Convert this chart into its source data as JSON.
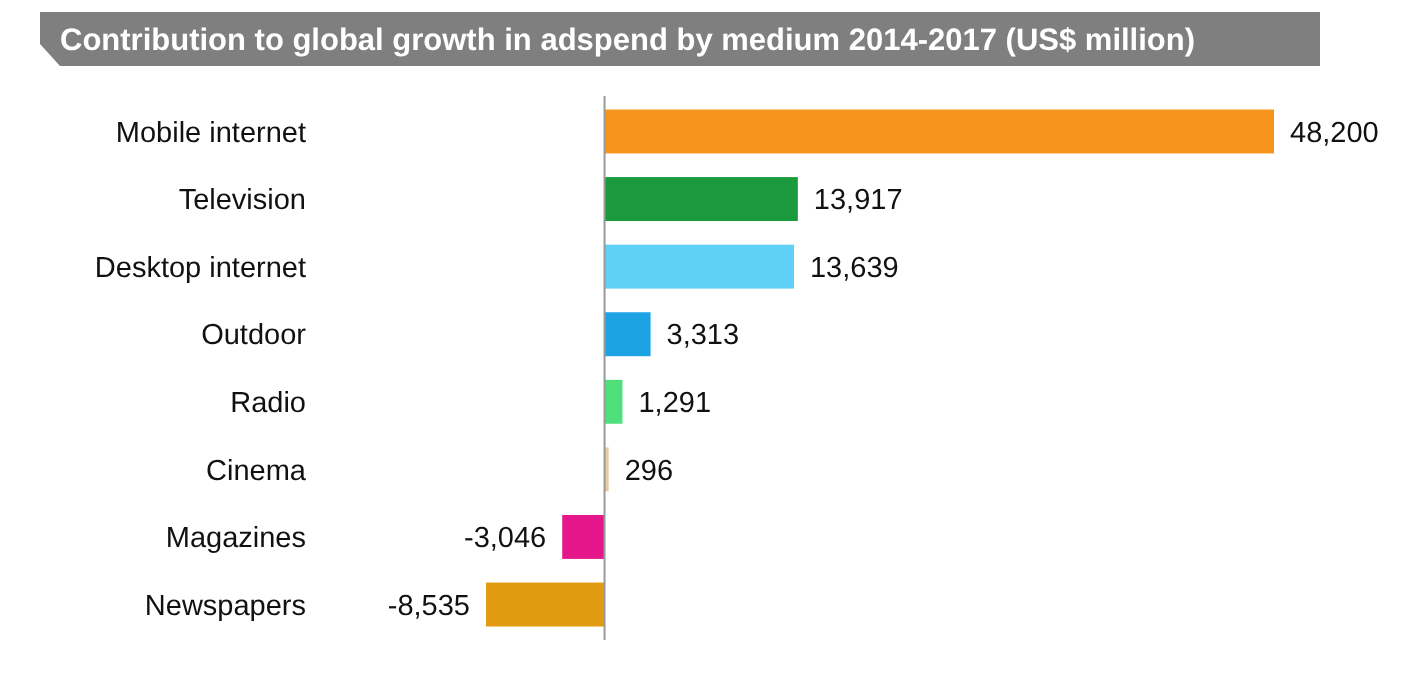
{
  "chart_data": {
    "type": "bar",
    "orientation": "horizontal",
    "title": "Contribution to global growth in adspend by medium 2014-2017 (US$ million)",
    "categories": [
      "Mobile internet",
      "Television",
      "Desktop internet",
      "Outdoor",
      "Radio",
      "Cinema",
      "Magazines",
      "Newspapers"
    ],
    "values": [
      48200,
      13917,
      13639,
      3313,
      1291,
      296,
      -3046,
      -8535
    ],
    "value_labels": [
      "48,200",
      "13,917",
      "13,639",
      "3,313",
      "1,291",
      "296",
      "-3,046",
      "-8,535"
    ],
    "colors": [
      "#f7941d",
      "#1a9a3c",
      "#5fd0f6",
      "#1ca3e3",
      "#4fe07c",
      "#e9c9a3",
      "#e5168a",
      "#e19b10"
    ]
  }
}
